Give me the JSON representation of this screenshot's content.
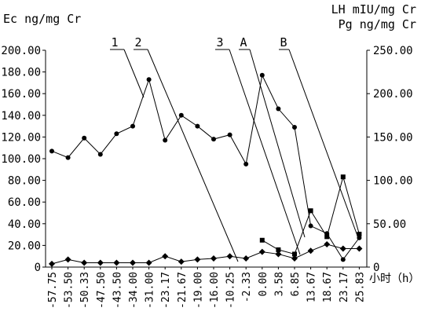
{
  "chart_data": {
    "type": "line",
    "left_axis_label": "Ec ng/mg Cr",
    "right_axis_label_1": "LH mIU/mg Cr",
    "right_axis_label_2": "Pg ng/mg Cr",
    "x_unit_label": "小时（h）",
    "x_tick_labels": [
      "-57.75",
      "-53.50",
      "-50.33",
      "-47.50",
      "-43.50",
      "-34.00",
      "-31.00",
      "-23.17",
      "-21.67",
      "-19.00",
      "-16.00",
      "-10.25",
      "-2.33",
      "0.00",
      "3.58",
      "6.85",
      "13.67",
      "18.67",
      "23.17",
      "25.83"
    ],
    "y_left_ticks": [
      "0",
      "20.00",
      "40.00",
      "60.00",
      "80.00",
      "100.00",
      "120.00",
      "140.00",
      "160.00",
      "180.00",
      "200.00"
    ],
    "y_right_ticks": [
      "0",
      "50.00",
      "100.00",
      "150.00",
      "200.00",
      "250.00"
    ],
    "ylim_left": [
      0,
      200
    ],
    "ylim_right": [
      0,
      250
    ],
    "annotations": [
      "1",
      "2",
      "3",
      "A",
      "B"
    ],
    "series": [
      {
        "axis": "left",
        "marker": "dot",
        "values": [
          107,
          101,
          119,
          104,
          123,
          130,
          173,
          117,
          140,
          130,
          118,
          122,
          95,
          177,
          146,
          129,
          38,
          31,
          7,
          27
        ]
      },
      {
        "axis": "left",
        "marker": "diamond",
        "values": [
          3,
          7,
          4,
          4,
          4,
          4,
          4,
          10,
          5,
          7,
          8,
          10,
          8,
          14,
          12,
          8,
          15,
          21,
          17,
          17
        ]
      },
      {
        "axis": "right",
        "marker": "square",
        "start_index": 13,
        "values": [
          31,
          20,
          15,
          65,
          35,
          104,
          38
        ]
      }
    ]
  }
}
